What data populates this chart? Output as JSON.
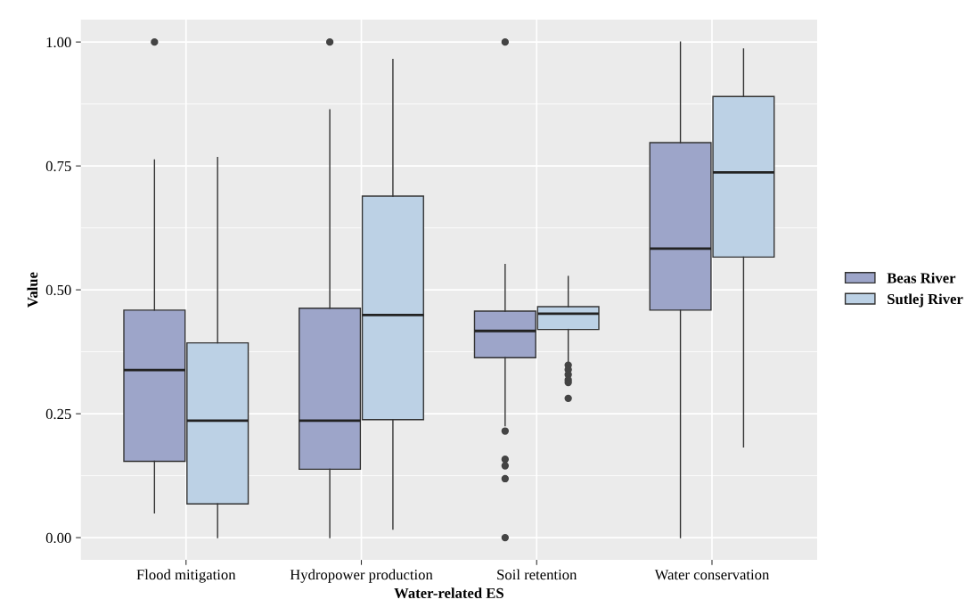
{
  "chart_data": {
    "type": "box",
    "xlabel": "Water-related ES",
    "ylabel": "Value",
    "categories": [
      "Flood mitigation",
      "Hydropower production",
      "Soil retention",
      "Water conservation"
    ],
    "ylim": [
      -0.045,
      1.045
    ],
    "yticks": [
      {
        "value": 0,
        "label": "0.00"
      },
      {
        "value": 0.25,
        "label": "0.25"
      },
      {
        "value": 0.5,
        "label": "0.50"
      },
      {
        "value": 0.75,
        "label": "0.75"
      },
      {
        "value": 1,
        "label": "1.00"
      }
    ],
    "grid": true,
    "legend": "right",
    "series": [
      {
        "name": "Beas River",
        "color": "#9da5c9",
        "boxes": [
          {
            "low": 0.05,
            "q1": 0.154,
            "median": 0.338,
            "q3": 0.459,
            "high": 0.762,
            "outliers": [
              1.0
            ]
          },
          {
            "low": 0.0,
            "q1": 0.138,
            "median": 0.236,
            "q3": 0.463,
            "high": 0.863,
            "outliers": [
              1.0
            ]
          },
          {
            "low": 0.226,
            "q1": 0.363,
            "median": 0.417,
            "q3": 0.457,
            "high": 0.551,
            "outliers": [
              1.0,
              0.215,
              0.158,
              0.145,
              0.119,
              0.0
            ]
          },
          {
            "low": 0.0,
            "q1": 0.459,
            "median": 0.583,
            "q3": 0.797,
            "high": 1.0
          }
        ]
      },
      {
        "name": "Sutlej River",
        "color": "#bcd1e5",
        "boxes": [
          {
            "low": 0.0,
            "q1": 0.068,
            "median": 0.236,
            "q3": 0.393,
            "high": 0.767
          },
          {
            "low": 0.017,
            "q1": 0.238,
            "median": 0.449,
            "q3": 0.689,
            "high": 0.965
          },
          {
            "low": 0.35,
            "q1": 0.42,
            "median": 0.452,
            "q3": 0.466,
            "high": 0.527,
            "outliers": [
              0.348,
              0.339,
              0.329,
              0.318,
              0.313,
              0.281
            ]
          },
          {
            "low": 0.183,
            "q1": 0.566,
            "median": 0.737,
            "q3": 0.89,
            "high": 0.986
          }
        ]
      }
    ]
  }
}
